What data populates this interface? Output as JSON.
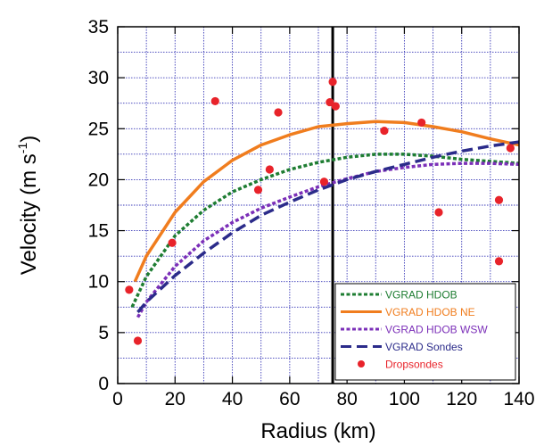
{
  "chart_data": {
    "type": "line",
    "xlabel": "Radius (km)",
    "ylabel_main": "Velocity (m s",
    "ylabel_sup": "-1",
    "ylabel_close": ")",
    "xlim": [
      0,
      140
    ],
    "ylim": [
      0,
      35
    ],
    "x_ticks": [
      0,
      20,
      40,
      60,
      80,
      100,
      120,
      140
    ],
    "y_ticks": [
      0,
      5,
      10,
      15,
      20,
      25,
      30,
      35
    ],
    "x_tick_labels": [
      "0",
      "20",
      "40",
      "60",
      "80",
      "100",
      "120",
      "140"
    ],
    "y_tick_labels": [
      "0",
      "5",
      "10",
      "15",
      "20",
      "25",
      "30",
      "35"
    ],
    "grid": true,
    "legend_position": "bottom-right",
    "vertical_line_x": 75,
    "series": [
      {
        "name": "VGRAD HDOB",
        "color": "#1e7d32",
        "style": "dotted",
        "x": [
          5,
          10,
          20,
          30,
          40,
          50,
          60,
          70,
          80,
          90,
          100,
          110,
          120,
          130,
          140
        ],
        "y": [
          7.5,
          10.5,
          14.5,
          17.0,
          18.8,
          20.0,
          21.0,
          21.7,
          22.2,
          22.5,
          22.5,
          22.3,
          22.0,
          21.8,
          21.6
        ]
      },
      {
        "name": "VGRAD HDOB NE",
        "color": "#f07d1e",
        "style": "solid",
        "x": [
          6,
          10,
          20,
          30,
          40,
          50,
          60,
          70,
          80,
          90,
          100,
          110,
          120,
          130,
          140
        ],
        "y": [
          10.0,
          12.5,
          16.8,
          19.8,
          21.9,
          23.4,
          24.4,
          25.2,
          25.5,
          25.7,
          25.6,
          25.2,
          24.7,
          24.0,
          23.4
        ]
      },
      {
        "name": "VGRAD HDOB WSW",
        "color": "#7b2fb8",
        "style": "dotted",
        "x": [
          7,
          10,
          20,
          30,
          40,
          50,
          60,
          70,
          80,
          90,
          100,
          110,
          120,
          130,
          140
        ],
        "y": [
          6.5,
          8.0,
          11.5,
          14.0,
          15.8,
          17.2,
          18.3,
          19.3,
          20.1,
          20.8,
          21.2,
          21.5,
          21.6,
          21.6,
          21.5
        ]
      },
      {
        "name": "VGRAD Sondes",
        "color": "#2b2b8a",
        "style": "dashed",
        "x": [
          7,
          10,
          20,
          30,
          40,
          50,
          60,
          70,
          80,
          90,
          100,
          110,
          120,
          130,
          140
        ],
        "y": [
          7.0,
          8.0,
          10.6,
          12.8,
          14.8,
          16.5,
          17.8,
          19.0,
          20.0,
          20.8,
          21.5,
          22.2,
          22.8,
          23.3,
          23.7
        ]
      }
    ],
    "scatter": {
      "name": "Dropsondes",
      "color": "#e8232a",
      "x": [
        4,
        7,
        19,
        34,
        49,
        53,
        56,
        72,
        74,
        75,
        76,
        93,
        106,
        112,
        133,
        133,
        137
      ],
      "y": [
        9.2,
        4.2,
        13.8,
        27.7,
        19.0,
        21.0,
        26.6,
        19.8,
        27.6,
        29.6,
        27.2,
        24.8,
        25.6,
        16.8,
        18.0,
        12.0,
        23.1
      ]
    }
  }
}
